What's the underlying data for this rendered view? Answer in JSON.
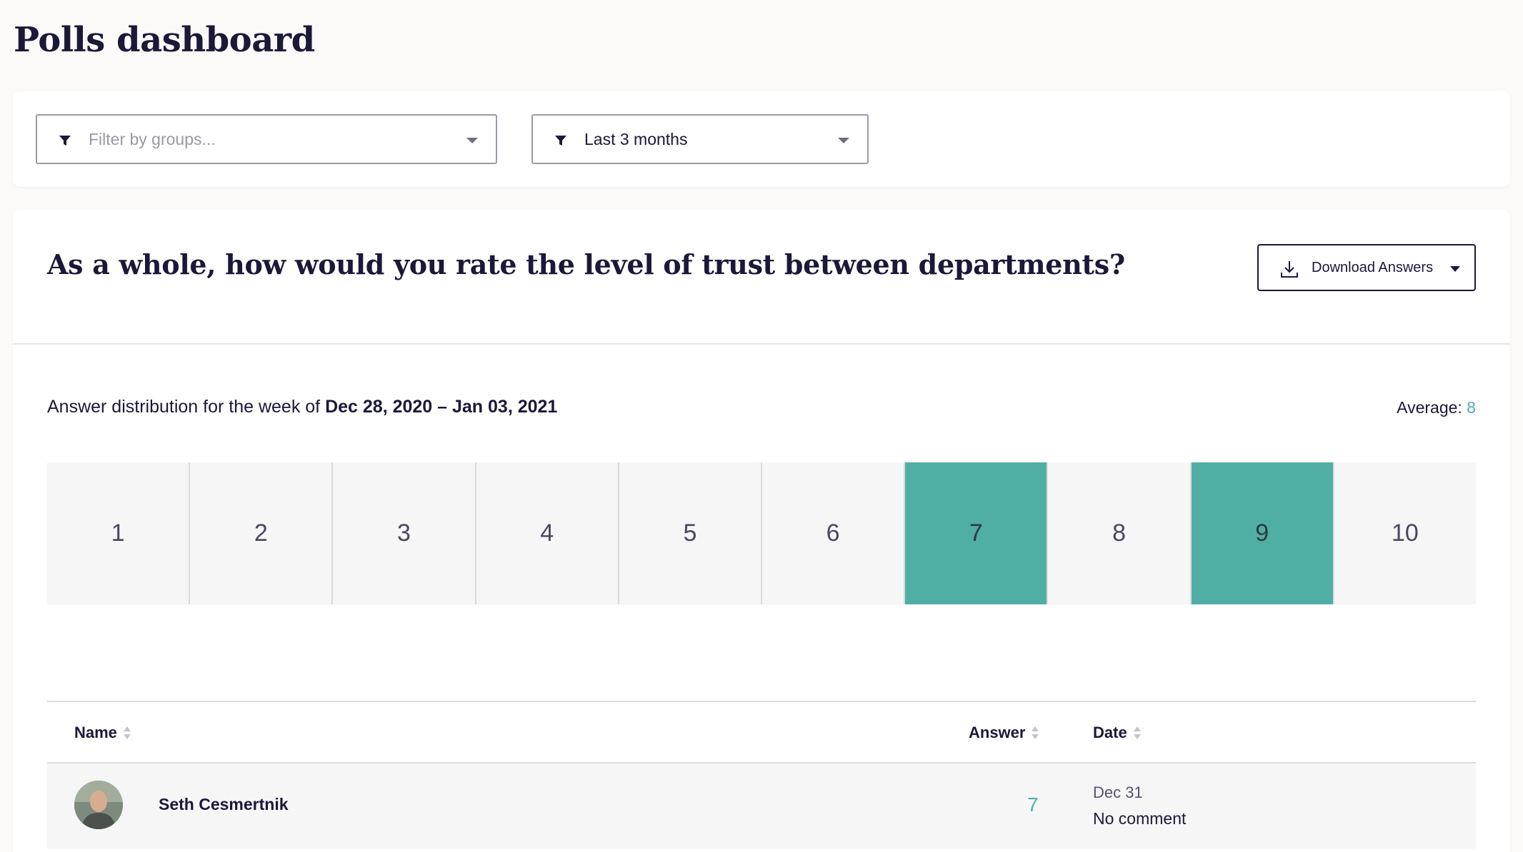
{
  "page": {
    "title": "Polls dashboard"
  },
  "filters": {
    "groups_placeholder": "Filter by groups...",
    "period_value": "Last 3 months",
    "icon": "funnel-icon"
  },
  "poll": {
    "question": "As a whole, how would you rate the level of trust between departments?",
    "download_label": "Download Answers",
    "distribution_prefix": "Answer distribution for the week of ",
    "distribution_range": "Dec 28, 2020 – Jan 03, 2021",
    "average_label": "Average:",
    "average_value": "8",
    "scale": [
      {
        "label": "1",
        "active": false
      },
      {
        "label": "2",
        "active": false
      },
      {
        "label": "3",
        "active": false
      },
      {
        "label": "4",
        "active": false
      },
      {
        "label": "5",
        "active": false
      },
      {
        "label": "6",
        "active": false
      },
      {
        "label": "7",
        "active": true
      },
      {
        "label": "8",
        "active": false
      },
      {
        "label": "9",
        "active": true
      },
      {
        "label": "10",
        "active": false
      }
    ],
    "accent_color": "#50afa4"
  },
  "table": {
    "headers": {
      "name": "Name",
      "answer": "Answer",
      "date": "Date"
    },
    "rows": [
      {
        "name": "Seth Cesmertnik",
        "answer": "7",
        "date": "Dec 31",
        "comment": "No comment"
      }
    ]
  }
}
